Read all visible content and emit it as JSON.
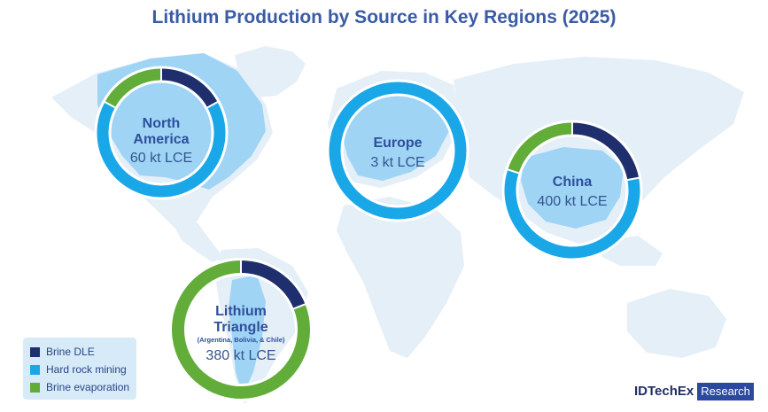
{
  "title": "Lithium Production by Source in Key Regions (2025)",
  "colors": {
    "brine_dle": "#1f2f6e",
    "hard_rock_mining": "#1aa7e8",
    "brine_evaporation": "#62ad3a",
    "map_land": "#e5eff8",
    "map_highlight": "#9fd4f5"
  },
  "chart_data": {
    "type": "pie",
    "variant": "donut",
    "legend": {
      "placement": "bottom-left"
    },
    "series_names": [
      "Brine DLE",
      "Hard rock mining",
      "Brine evaporation"
    ],
    "regions": [
      {
        "name_lines": [
          "North",
          "America"
        ],
        "value_label": "60 kt LCE",
        "shares": {
          "brine_dle": 0.17,
          "hard_rock_mining": 0.66,
          "brine_evaporation": 0.17
        }
      },
      {
        "name_lines": [
          "Europe"
        ],
        "value_label": "3 kt LCE",
        "shares": {
          "brine_dle": 0,
          "hard_rock_mining": 1.0,
          "brine_evaporation": 0
        }
      },
      {
        "name_lines": [
          "China"
        ],
        "value_label": "400 kt LCE",
        "shares": {
          "brine_dle": 0.22,
          "hard_rock_mining": 0.58,
          "brine_evaporation": 0.2
        }
      },
      {
        "name_lines": [
          "Lithium",
          "Triangle"
        ],
        "note": "(Argentina, Bolivia, & Chile)",
        "value_label": "380 kt LCE",
        "shares": {
          "brine_dle": 0.19,
          "hard_rock_mining": 0,
          "brine_evaporation": 0.81
        }
      }
    ]
  },
  "legend": [
    {
      "label": "Brine DLE",
      "color": "#1f2f6e"
    },
    {
      "label": "Hard rock mining",
      "color": "#1aa7e8"
    },
    {
      "label": "Brine evaporation",
      "color": "#62ad3a"
    }
  ],
  "logo": {
    "brand": "IDTechEx",
    "sub": "Research"
  }
}
